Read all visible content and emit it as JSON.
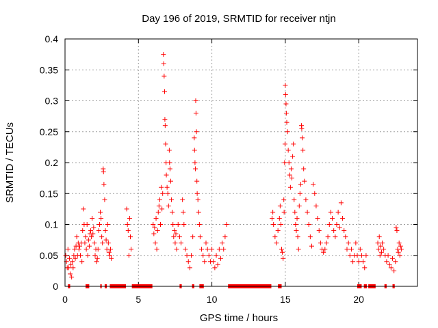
{
  "chart_data": {
    "type": "scatter",
    "title": "Day 196 of 2019, SRMTID for receiver ntjn",
    "xlabel": "GPS time / hours",
    "ylabel": "SRMTID / TECUs",
    "xlim": [
      0,
      24
    ],
    "ylim": [
      0,
      0.4
    ],
    "x_ticks": [
      0,
      5,
      10,
      15,
      20
    ],
    "x_tick_labels": [
      "0",
      "5",
      "10",
      "15",
      "20"
    ],
    "y_ticks": [
      0,
      0.05,
      0.1,
      0.15,
      0.2,
      0.25,
      0.3,
      0.35,
      0.4
    ],
    "y_tick_labels": [
      "0",
      "0.05",
      "0.1",
      "0.15",
      "0.2",
      "0.25",
      "0.3",
      "0.35",
      "0.4"
    ],
    "grid": true,
    "marker": "+",
    "color": "#ff0000",
    "series": [
      {
        "name": "SRMTID",
        "points": [
          [
            0.05,
            0.05
          ],
          [
            0.1,
            0.04
          ],
          [
            0.15,
            0.03
          ],
          [
            0.2,
            0.06
          ],
          [
            0.25,
            0.03
          ],
          [
            0.3,
            0.045
          ],
          [
            0.35,
            0.02
          ],
          [
            0.4,
            0.035
          ],
          [
            0.45,
            0.015
          ],
          [
            0.5,
            0.04
          ],
          [
            0.55,
            0.03
          ],
          [
            0.6,
            0.05
          ],
          [
            0.65,
            0.06
          ],
          [
            0.7,
            0.045
          ],
          [
            0.75,
            0.065
          ],
          [
            0.8,
            0.08
          ],
          [
            0.85,
            0.05
          ],
          [
            0.9,
            0.07
          ],
          [
            0.95,
            0.06
          ],
          [
            1.0,
            0.065
          ],
          [
            1.05,
            0.05
          ],
          [
            1.1,
            0.07
          ],
          [
            1.15,
            0.04
          ],
          [
            1.2,
            0.09
          ],
          [
            1.25,
            0.125
          ],
          [
            1.3,
            0.1
          ],
          [
            1.35,
            0.07
          ],
          [
            1.4,
            0.08
          ],
          [
            1.45,
            0.06
          ],
          [
            1.5,
            0.1
          ],
          [
            1.55,
            0.05
          ],
          [
            1.6,
            0.075
          ],
          [
            1.65,
            0.065
          ],
          [
            1.7,
            0.085
          ],
          [
            1.75,
            0.09
          ],
          [
            1.8,
            0.08
          ],
          [
            1.85,
            0.11
          ],
          [
            1.9,
            0.085
          ],
          [
            1.95,
            0.095
          ],
          [
            2.0,
            0.07
          ],
          [
            2.05,
            0.05
          ],
          [
            2.1,
            0.06
          ],
          [
            2.15,
            0.04
          ],
          [
            2.2,
            0.045
          ],
          [
            2.25,
            0.06
          ],
          [
            2.3,
            0.09
          ],
          [
            2.35,
            0.1
          ],
          [
            2.4,
            0.12
          ],
          [
            2.45,
            0.11
          ],
          [
            2.5,
            0.08
          ],
          [
            2.55,
            0.07
          ],
          [
            2.6,
            0.19
          ],
          [
            2.62,
            0.185
          ],
          [
            2.65,
            0.165
          ],
          [
            2.7,
            0.14
          ],
          [
            2.75,
            0.09
          ],
          [
            2.8,
            0.075
          ],
          [
            2.85,
            0.06
          ],
          [
            2.9,
            0.1
          ],
          [
            2.95,
            0.07
          ],
          [
            3.0,
            0.055
          ],
          [
            3.05,
            0.05
          ],
          [
            3.1,
            0.06
          ],
          [
            3.15,
            0.045
          ],
          [
            4.2,
            0.125
          ],
          [
            4.25,
            0.1
          ],
          [
            4.3,
            0.09
          ],
          [
            4.35,
            0.05
          ],
          [
            4.4,
            0.11
          ],
          [
            4.45,
            0.08
          ],
          [
            4.5,
            0.06
          ],
          [
            6.0,
            0.1
          ],
          [
            6.05,
            0.085
          ],
          [
            6.1,
            0.095
          ],
          [
            6.15,
            0.07
          ],
          [
            6.2,
            0.11
          ],
          [
            6.25,
            0.06
          ],
          [
            6.3,
            0.09
          ],
          [
            6.35,
            0.12
          ],
          [
            6.4,
            0.13
          ],
          [
            6.45,
            0.14
          ],
          [
            6.5,
            0.1
          ],
          [
            6.55,
            0.16
          ],
          [
            6.6,
            0.125
          ],
          [
            6.65,
            0.15
          ],
          [
            6.7,
            0.375
          ],
          [
            6.72,
            0.36
          ],
          [
            6.75,
            0.34
          ],
          [
            6.78,
            0.315
          ],
          [
            6.8,
            0.27
          ],
          [
            6.82,
            0.26
          ],
          [
            6.85,
            0.23
          ],
          [
            6.88,
            0.2
          ],
          [
            6.9,
            0.18
          ],
          [
            6.95,
            0.16
          ],
          [
            7.0,
            0.15
          ],
          [
            7.05,
            0.13
          ],
          [
            7.1,
            0.22
          ],
          [
            7.12,
            0.2
          ],
          [
            7.15,
            0.19
          ],
          [
            7.2,
            0.17
          ],
          [
            7.25,
            0.14
          ],
          [
            7.3,
            0.12
          ],
          [
            7.35,
            0.1
          ],
          [
            7.4,
            0.08
          ],
          [
            7.45,
            0.09
          ],
          [
            7.5,
            0.07
          ],
          [
            7.55,
            0.085
          ],
          [
            7.6,
            0.06
          ],
          [
            7.7,
            0.1
          ],
          [
            7.8,
            0.08
          ],
          [
            7.9,
            0.07
          ],
          [
            8.0,
            0.14
          ],
          [
            8.05,
            0.12
          ],
          [
            8.1,
            0.1
          ],
          [
            8.2,
            0.06
          ],
          [
            8.3,
            0.05
          ],
          [
            8.4,
            0.04
          ],
          [
            8.5,
            0.03
          ],
          [
            8.6,
            0.05
          ],
          [
            8.7,
            0.08
          ],
          [
            8.8,
            0.24
          ],
          [
            8.82,
            0.22
          ],
          [
            8.85,
            0.2
          ],
          [
            8.88,
            0.19
          ],
          [
            8.9,
            0.3
          ],
          [
            8.92,
            0.28
          ],
          [
            8.95,
            0.25
          ],
          [
            8.98,
            0.17
          ],
          [
            9.0,
            0.15
          ],
          [
            9.05,
            0.14
          ],
          [
            9.1,
            0.12
          ],
          [
            9.15,
            0.1
          ],
          [
            9.2,
            0.08
          ],
          [
            9.3,
            0.06
          ],
          [
            9.4,
            0.05
          ],
          [
            9.5,
            0.04
          ],
          [
            9.6,
            0.07
          ],
          [
            9.7,
            0.06
          ],
          [
            9.8,
            0.05
          ],
          [
            9.9,
            0.04
          ],
          [
            10.0,
            0.06
          ],
          [
            10.1,
            0.04
          ],
          [
            10.2,
            0.03
          ],
          [
            10.3,
            0.05
          ],
          [
            10.4,
            0.035
          ],
          [
            10.5,
            0.06
          ],
          [
            10.6,
            0.045
          ],
          [
            10.7,
            0.07
          ],
          [
            10.8,
            0.06
          ],
          [
            10.9,
            0.08
          ],
          [
            11.0,
            0.1
          ],
          [
            14.1,
            0.11
          ],
          [
            14.15,
            0.12
          ],
          [
            14.2,
            0.1
          ],
          [
            14.3,
            0.08
          ],
          [
            14.4,
            0.07
          ],
          [
            14.5,
            0.09
          ],
          [
            14.6,
            0.11
          ],
          [
            14.65,
            0.13
          ],
          [
            14.7,
            0.1
          ],
          [
            14.75,
            0.06
          ],
          [
            14.8,
            0.055
          ],
          [
            14.85,
            0.045
          ],
          [
            14.9,
            0.14
          ],
          [
            14.92,
            0.12
          ],
          [
            14.95,
            0.2
          ],
          [
            14.98,
            0.23
          ],
          [
            15.0,
            0.325
          ],
          [
            15.02,
            0.31
          ],
          [
            15.05,
            0.295
          ],
          [
            15.07,
            0.28
          ],
          [
            15.1,
            0.265
          ],
          [
            15.15,
            0.25
          ],
          [
            15.2,
            0.22
          ],
          [
            15.25,
            0.2
          ],
          [
            15.3,
            0.18
          ],
          [
            15.35,
            0.16
          ],
          [
            15.4,
            0.19
          ],
          [
            15.45,
            0.175
          ],
          [
            15.5,
            0.21
          ],
          [
            15.55,
            0.23
          ],
          [
            15.6,
            0.14
          ],
          [
            15.65,
            0.12
          ],
          [
            15.7,
            0.1
          ],
          [
            15.75,
            0.09
          ],
          [
            15.8,
            0.11
          ],
          [
            15.85,
            0.08
          ],
          [
            15.9,
            0.06
          ],
          [
            15.95,
            0.13
          ],
          [
            16.0,
            0.15
          ],
          [
            16.05,
            0.165
          ],
          [
            16.1,
            0.26
          ],
          [
            16.12,
            0.255
          ],
          [
            16.15,
            0.24
          ],
          [
            16.2,
            0.22
          ],
          [
            16.25,
            0.19
          ],
          [
            16.3,
            0.17
          ],
          [
            16.4,
            0.14
          ],
          [
            16.5,
            0.12
          ],
          [
            16.6,
            0.1
          ],
          [
            16.7,
            0.08
          ],
          [
            16.8,
            0.065
          ],
          [
            16.9,
            0.165
          ],
          [
            17.0,
            0.15
          ],
          [
            17.1,
            0.13
          ],
          [
            17.2,
            0.11
          ],
          [
            17.3,
            0.09
          ],
          [
            17.4,
            0.07
          ],
          [
            17.5,
            0.06
          ],
          [
            17.6,
            0.055
          ],
          [
            17.7,
            0.06
          ],
          [
            17.8,
            0.07
          ],
          [
            17.9,
            0.08
          ],
          [
            18.0,
            0.1
          ],
          [
            18.1,
            0.12
          ],
          [
            18.2,
            0.11
          ],
          [
            18.3,
            0.09
          ],
          [
            18.4,
            0.08
          ],
          [
            18.5,
            0.1
          ],
          [
            18.6,
            0.12
          ],
          [
            18.7,
            0.095
          ],
          [
            18.8,
            0.135
          ],
          [
            18.9,
            0.11
          ],
          [
            19.0,
            0.09
          ],
          [
            19.1,
            0.08
          ],
          [
            19.2,
            0.06
          ],
          [
            19.3,
            0.07
          ],
          [
            19.4,
            0.05
          ],
          [
            19.5,
            0.06
          ],
          [
            19.6,
            0.04
          ],
          [
            19.7,
            0.05
          ],
          [
            19.8,
            0.07
          ],
          [
            19.9,
            0.05
          ],
          [
            20.0,
            0.04
          ],
          [
            20.1,
            0.06
          ],
          [
            20.2,
            0.05
          ],
          [
            20.3,
            0.04
          ],
          [
            20.4,
            0.03
          ],
          [
            20.5,
            0.05
          ],
          [
            21.3,
            0.07
          ],
          [
            21.35,
            0.06
          ],
          [
            21.4,
            0.08
          ],
          [
            21.45,
            0.05
          ],
          [
            21.5,
            0.065
          ],
          [
            21.55,
            0.055
          ],
          [
            21.6,
            0.07
          ],
          [
            21.7,
            0.06
          ],
          [
            21.8,
            0.05
          ],
          [
            21.9,
            0.04
          ],
          [
            22.0,
            0.05
          ],
          [
            22.1,
            0.035
          ],
          [
            22.2,
            0.03
          ],
          [
            22.3,
            0.045
          ],
          [
            22.4,
            0.025
          ],
          [
            22.5,
            0.04
          ],
          [
            22.55,
            0.095
          ],
          [
            22.6,
            0.09
          ],
          [
            22.65,
            0.06
          ],
          [
            22.7,
            0.055
          ],
          [
            22.75,
            0.07
          ],
          [
            22.8,
            0.05
          ],
          [
            22.85,
            0.065
          ],
          [
            22.9,
            0.06
          ]
        ],
        "zero_intervals": [
          [
            0.2,
            0.35
          ],
          [
            1.4,
            1.65
          ],
          [
            2.4,
            2.5
          ],
          [
            2.7,
            2.85
          ],
          [
            3.05,
            4.15
          ],
          [
            4.55,
            5.95
          ],
          [
            7.8,
            7.95
          ],
          [
            8.65,
            8.8
          ],
          [
            9.15,
            9.45
          ],
          [
            11.1,
            14.05
          ],
          [
            14.5,
            14.75
          ],
          [
            19.9,
            20.2
          ],
          [
            20.35,
            20.55
          ],
          [
            20.65,
            21.15
          ],
          [
            21.75,
            21.9
          ],
          [
            22.3,
            22.45
          ]
        ]
      }
    ]
  }
}
